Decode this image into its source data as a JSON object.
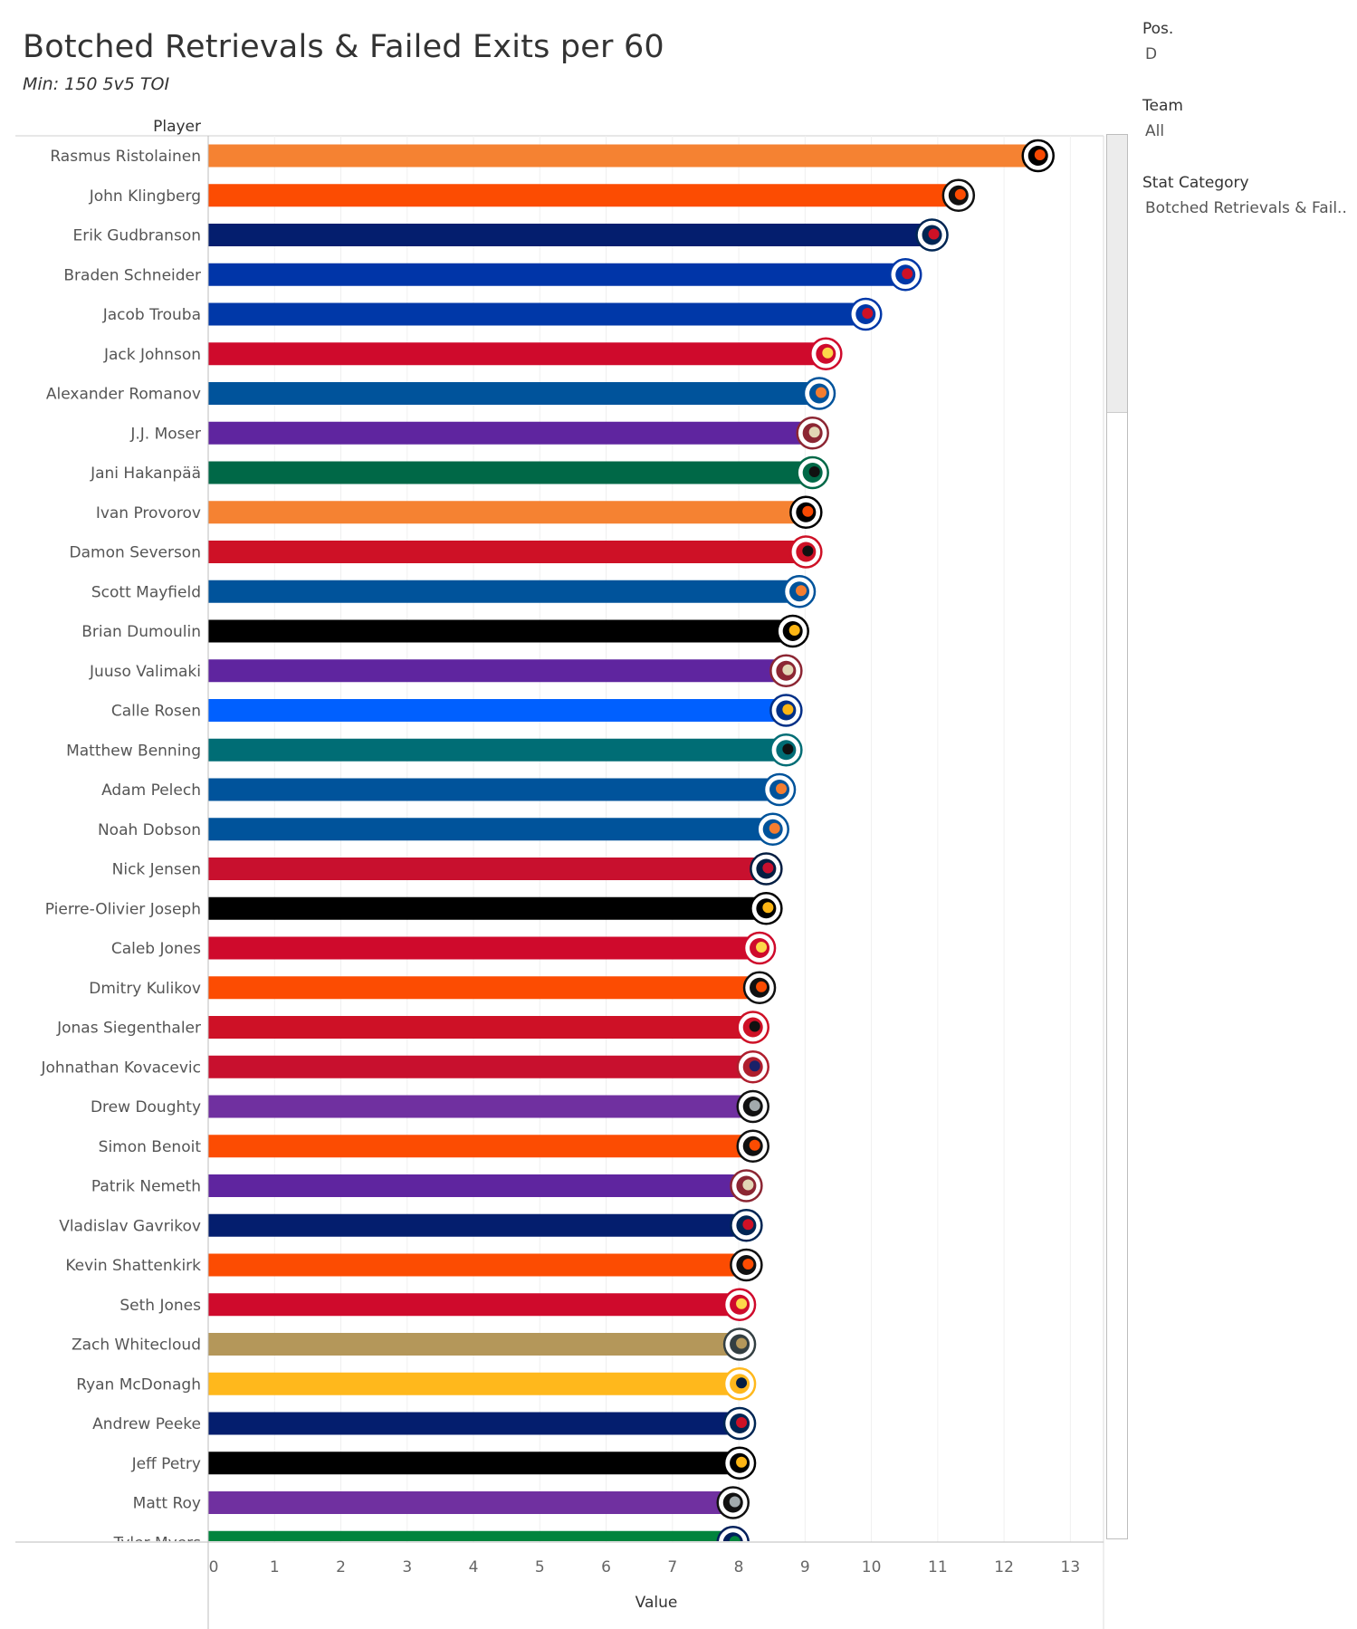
{
  "header": {
    "title": "Botched Retrievals & Failed Exits per 60",
    "subtitle": "Min: 150 5v5 TOI"
  },
  "filters": [
    {
      "label": "Pos.",
      "value": "D"
    },
    {
      "label": "Team",
      "value": "All"
    },
    {
      "label": "Stat Category",
      "value": "Botched Retrievals & Fail.."
    }
  ],
  "chart_data": {
    "type": "bar",
    "orientation": "horizontal",
    "title": "Botched Retrievals & Failed Exits per 60",
    "subtitle": "Min: 150 5v5 TOI",
    "row_header": "Player",
    "xlabel": "Value",
    "xlim": [
      0,
      13.5
    ],
    "xticks": [
      0,
      1,
      2,
      3,
      4,
      5,
      6,
      7,
      8,
      9,
      10,
      11,
      12,
      13
    ],
    "grid": true,
    "categories": [
      "Rasmus Ristolainen",
      "John Klingberg",
      "Erik Gudbranson",
      "Braden Schneider",
      "Jacob Trouba",
      "Jack Johnson",
      "Alexander Romanov",
      "J.J. Moser",
      "Jani Hakanpää",
      "Ivan Provorov",
      "Damon Severson",
      "Scott Mayfield",
      "Brian Dumoulin",
      "Juuso Valimaki",
      "Calle Rosen",
      "Matthew Benning",
      "Adam Pelech",
      "Noah Dobson",
      "Nick Jensen",
      "Pierre-Olivier Joseph",
      "Caleb Jones",
      "Dmitry Kulikov",
      "Jonas Siegenthaler",
      "Johnathan Kovacevic",
      "Drew Doughty",
      "Simon Benoit",
      "Patrik Nemeth",
      "Vladislav Gavrikov",
      "Kevin Shattenkirk",
      "Seth Jones",
      "Zach Whitecloud",
      "Ryan McDonagh",
      "Andrew Peeke",
      "Jeff Petry",
      "Matt Roy",
      "Tyler Myers"
    ],
    "values": [
      12.5,
      11.3,
      10.9,
      10.5,
      9.9,
      9.3,
      9.2,
      9.1,
      9.1,
      9.0,
      9.0,
      8.9,
      8.8,
      8.7,
      8.7,
      8.7,
      8.6,
      8.5,
      8.4,
      8.4,
      8.3,
      8.3,
      8.2,
      8.2,
      8.2,
      8.2,
      8.1,
      8.1,
      8.1,
      8.0,
      8.0,
      8.0,
      8.0,
      8.0,
      7.9,
      7.9
    ],
    "teams": [
      "PHI",
      "ANA",
      "CBJ",
      "NYR",
      "NYR",
      "CHI",
      "NYI",
      "ARI",
      "DAL",
      "PHI",
      "NJD",
      "NYI",
      "PIT",
      "ARI",
      "STL",
      "SJS",
      "NYI",
      "NYI",
      "WSH",
      "PIT",
      "CHI",
      "ANA",
      "NJD",
      "MTL",
      "LAK",
      "ANA",
      "ARI",
      "CBJ",
      "ANA",
      "CHI",
      "VGK",
      "NSH",
      "CBJ",
      "PIT",
      "LAK",
      "VAN"
    ],
    "colors": [
      "#f58232",
      "#fc4c02",
      "#041e6e",
      "#0035a8",
      "#0038a8",
      "#cf0a2c",
      "#00539b",
      "#5f259f",
      "#006847",
      "#f58232",
      "#ce1126",
      "#00539b",
      "#000000",
      "#5f259f",
      "#0060ff",
      "#006d75",
      "#00539b",
      "#00539b",
      "#c8102e",
      "#000000",
      "#cf0a2c",
      "#fc4c02",
      "#ce1126",
      "#c8102e",
      "#7030a0",
      "#fc4c02",
      "#5f259f",
      "#041e6e",
      "#fc4c02",
      "#cf0a2c",
      "#b4975a",
      "#ffb81c",
      "#041e6e",
      "#000000",
      "#7030a0",
      "#00843d"
    ],
    "team_logo_colors": {
      "PHI": [
        "#000000",
        "#f74902"
      ],
      "ANA": [
        "#111111",
        "#fc4c02"
      ],
      "CBJ": [
        "#002654",
        "#ce1126"
      ],
      "NYR": [
        "#0038a8",
        "#ce1126"
      ],
      "CHI": [
        "#cf0a2c",
        "#fdd74a"
      ],
      "NYI": [
        "#00539b",
        "#f47d30"
      ],
      "ARI": [
        "#8c2633",
        "#e2d6b5"
      ],
      "DAL": [
        "#006847",
        "#111111"
      ],
      "NJD": [
        "#ce1126",
        "#111111"
      ],
      "PIT": [
        "#000000",
        "#fcb514"
      ],
      "STL": [
        "#002f87",
        "#fcb514"
      ],
      "SJS": [
        "#006d75",
        "#111111"
      ],
      "WSH": [
        "#041e42",
        "#c8102e"
      ],
      "MTL": [
        "#af1e2d",
        "#192168"
      ],
      "LAK": [
        "#111111",
        "#a2aaad"
      ],
      "VGK": [
        "#333f42",
        "#b4975a"
      ],
      "NSH": [
        "#ffb81c",
        "#041e42"
      ],
      "VAN": [
        "#00205b",
        "#00843d"
      ]
    }
  }
}
